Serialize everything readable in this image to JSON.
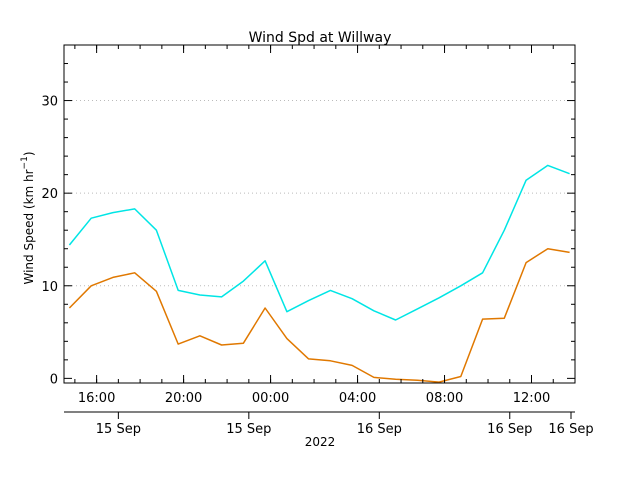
{
  "chart_data": {
    "type": "line",
    "title": "Wind Spd at Willway",
    "ylabel": "Wind Speed (km hr",
    "ylabel_exponent": "−1",
    "ylabel_close": ")",
    "ylim": [
      0,
      36
    ],
    "yticks": [
      0,
      10,
      20,
      30
    ],
    "grid": true,
    "legend": "none",
    "x": [
      14.75,
      15.75,
      16.75,
      17.75,
      18.75,
      19.75,
      20.75,
      21.75,
      22.75,
      23.75,
      24.75,
      25.75,
      26.75,
      27.75,
      28.75,
      29.75,
      30.75,
      31.75,
      32.75,
      33.75,
      34.75,
      35.75,
      36.75,
      37.75
    ],
    "xlim": [
      14.5,
      38.0
    ],
    "upper_ticks": [
      {
        "x": 16,
        "label": "16:00"
      },
      {
        "x": 20,
        "label": "20:00"
      },
      {
        "x": 24,
        "label": "00:00"
      },
      {
        "x": 28,
        "label": "04:00"
      },
      {
        "x": 32,
        "label": "08:00"
      },
      {
        "x": 36,
        "label": "12:00"
      }
    ],
    "lower_ticks": [
      {
        "x": 17,
        "label": "15 Sep"
      },
      {
        "x": 23,
        "label": "15 Sep"
      },
      {
        "x": 29,
        "label": "16 Sep"
      },
      {
        "x": 35,
        "label": "16 Sep"
      },
      {
        "x": 40,
        "label": "16 Sep"
      }
    ],
    "year_label": "2022",
    "series": [
      {
        "color": "#00e5e5",
        "values": [
          14.4,
          17.3,
          17.9,
          18.3,
          16.0,
          9.5,
          9.0,
          8.8,
          10.5,
          12.7,
          7.2,
          8.4,
          9.5,
          8.6,
          7.3,
          6.3,
          7.5,
          8.7,
          10.0,
          11.4,
          16.0,
          21.4,
          23.0,
          22.1
        ]
      },
      {
        "color": "#e07800",
        "values": [
          7.6,
          10.0,
          10.9,
          11.4,
          9.4,
          3.7,
          4.6,
          3.6,
          3.8,
          7.6,
          4.3,
          2.1,
          1.9,
          1.4,
          0.1,
          -0.1,
          -0.2,
          -0.4,
          0.2,
          6.4,
          6.5,
          12.5,
          14.0,
          13.6
        ]
      }
    ]
  }
}
